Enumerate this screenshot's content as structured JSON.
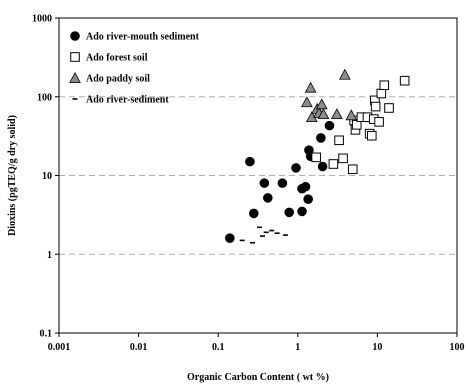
{
  "chart_data": {
    "type": "scatter",
    "xlabel": "Organic Carbon Content ( wt %)",
    "ylabel": "Dioxins  (pgTEQ/g dry solid)",
    "xscale": "log",
    "yscale": "log",
    "xlim": [
      0.001,
      100
    ],
    "ylim": [
      0.1,
      1000
    ],
    "x_ticks": [
      "0.001",
      "0.01",
      "0.1",
      "1",
      "10",
      "100"
    ],
    "y_ticks": [
      "0.1",
      "1",
      "10",
      "100",
      "1000"
    ],
    "grid": "horizontal dashed",
    "legend_position": "top-left",
    "series": [
      {
        "name": "Ado river-mouth sediment",
        "marker": "filled-circle",
        "color": "#000000",
        "points": [
          [
            0.14,
            1.6
          ],
          [
            0.25,
            15.0
          ],
          [
            0.28,
            3.3
          ],
          [
            0.38,
            8.0
          ],
          [
            0.42,
            5.2
          ],
          [
            0.64,
            8.0
          ],
          [
            0.78,
            3.4
          ],
          [
            0.95,
            12.5
          ],
          [
            1.13,
            3.5
          ],
          [
            1.13,
            6.8
          ],
          [
            1.25,
            7.2
          ],
          [
            1.35,
            5.0
          ],
          [
            1.38,
            21.0
          ],
          [
            1.45,
            17.5
          ],
          [
            1.95,
            30.0
          ],
          [
            2.05,
            13.0
          ],
          [
            2.5,
            43.0
          ]
        ]
      },
      {
        "name": "Ado forest soil",
        "marker": "open-square",
        "color": "#000000",
        "points": [
          [
            1.7,
            17.0
          ],
          [
            2.8,
            14.0
          ],
          [
            3.3,
            28.0
          ],
          [
            3.7,
            16.5
          ],
          [
            4.9,
            12.0
          ],
          [
            5.1,
            50.0
          ],
          [
            5.3,
            38.0
          ],
          [
            5.5,
            44.0
          ],
          [
            6.3,
            55.0
          ],
          [
            7.5,
            55.0
          ],
          [
            8.0,
            34.0
          ],
          [
            8.5,
            32.0
          ],
          [
            9.0,
            52.0
          ],
          [
            9.3,
            90.0
          ],
          [
            9.5,
            75.0
          ],
          [
            10.5,
            48.0
          ],
          [
            11.2,
            110.0
          ],
          [
            12.2,
            140.0
          ],
          [
            14.0,
            72.0
          ],
          [
            22.0,
            160.0
          ]
        ]
      },
      {
        "name": "Ado paddy soil",
        "marker": "filled-triangle",
        "color": "#8c8c8c",
        "points": [
          [
            1.3,
            85.0
          ],
          [
            1.45,
            130.0
          ],
          [
            1.5,
            55.0
          ],
          [
            1.75,
            70.0
          ],
          [
            1.85,
            62.0
          ],
          [
            2.0,
            80.0
          ],
          [
            2.1,
            60.0
          ],
          [
            3.1,
            60.0
          ],
          [
            3.9,
            190.0
          ],
          [
            4.7,
            58.0
          ]
        ]
      },
      {
        "name": "Ado river-sediment",
        "marker": "dash",
        "color": "#000000",
        "points": [
          [
            0.2,
            1.5
          ],
          [
            0.27,
            1.4
          ],
          [
            0.33,
            2.2
          ],
          [
            0.36,
            1.7
          ],
          [
            0.4,
            1.9
          ],
          [
            0.47,
            2.0
          ],
          [
            0.55,
            1.85
          ],
          [
            0.7,
            1.75
          ]
        ]
      }
    ]
  }
}
